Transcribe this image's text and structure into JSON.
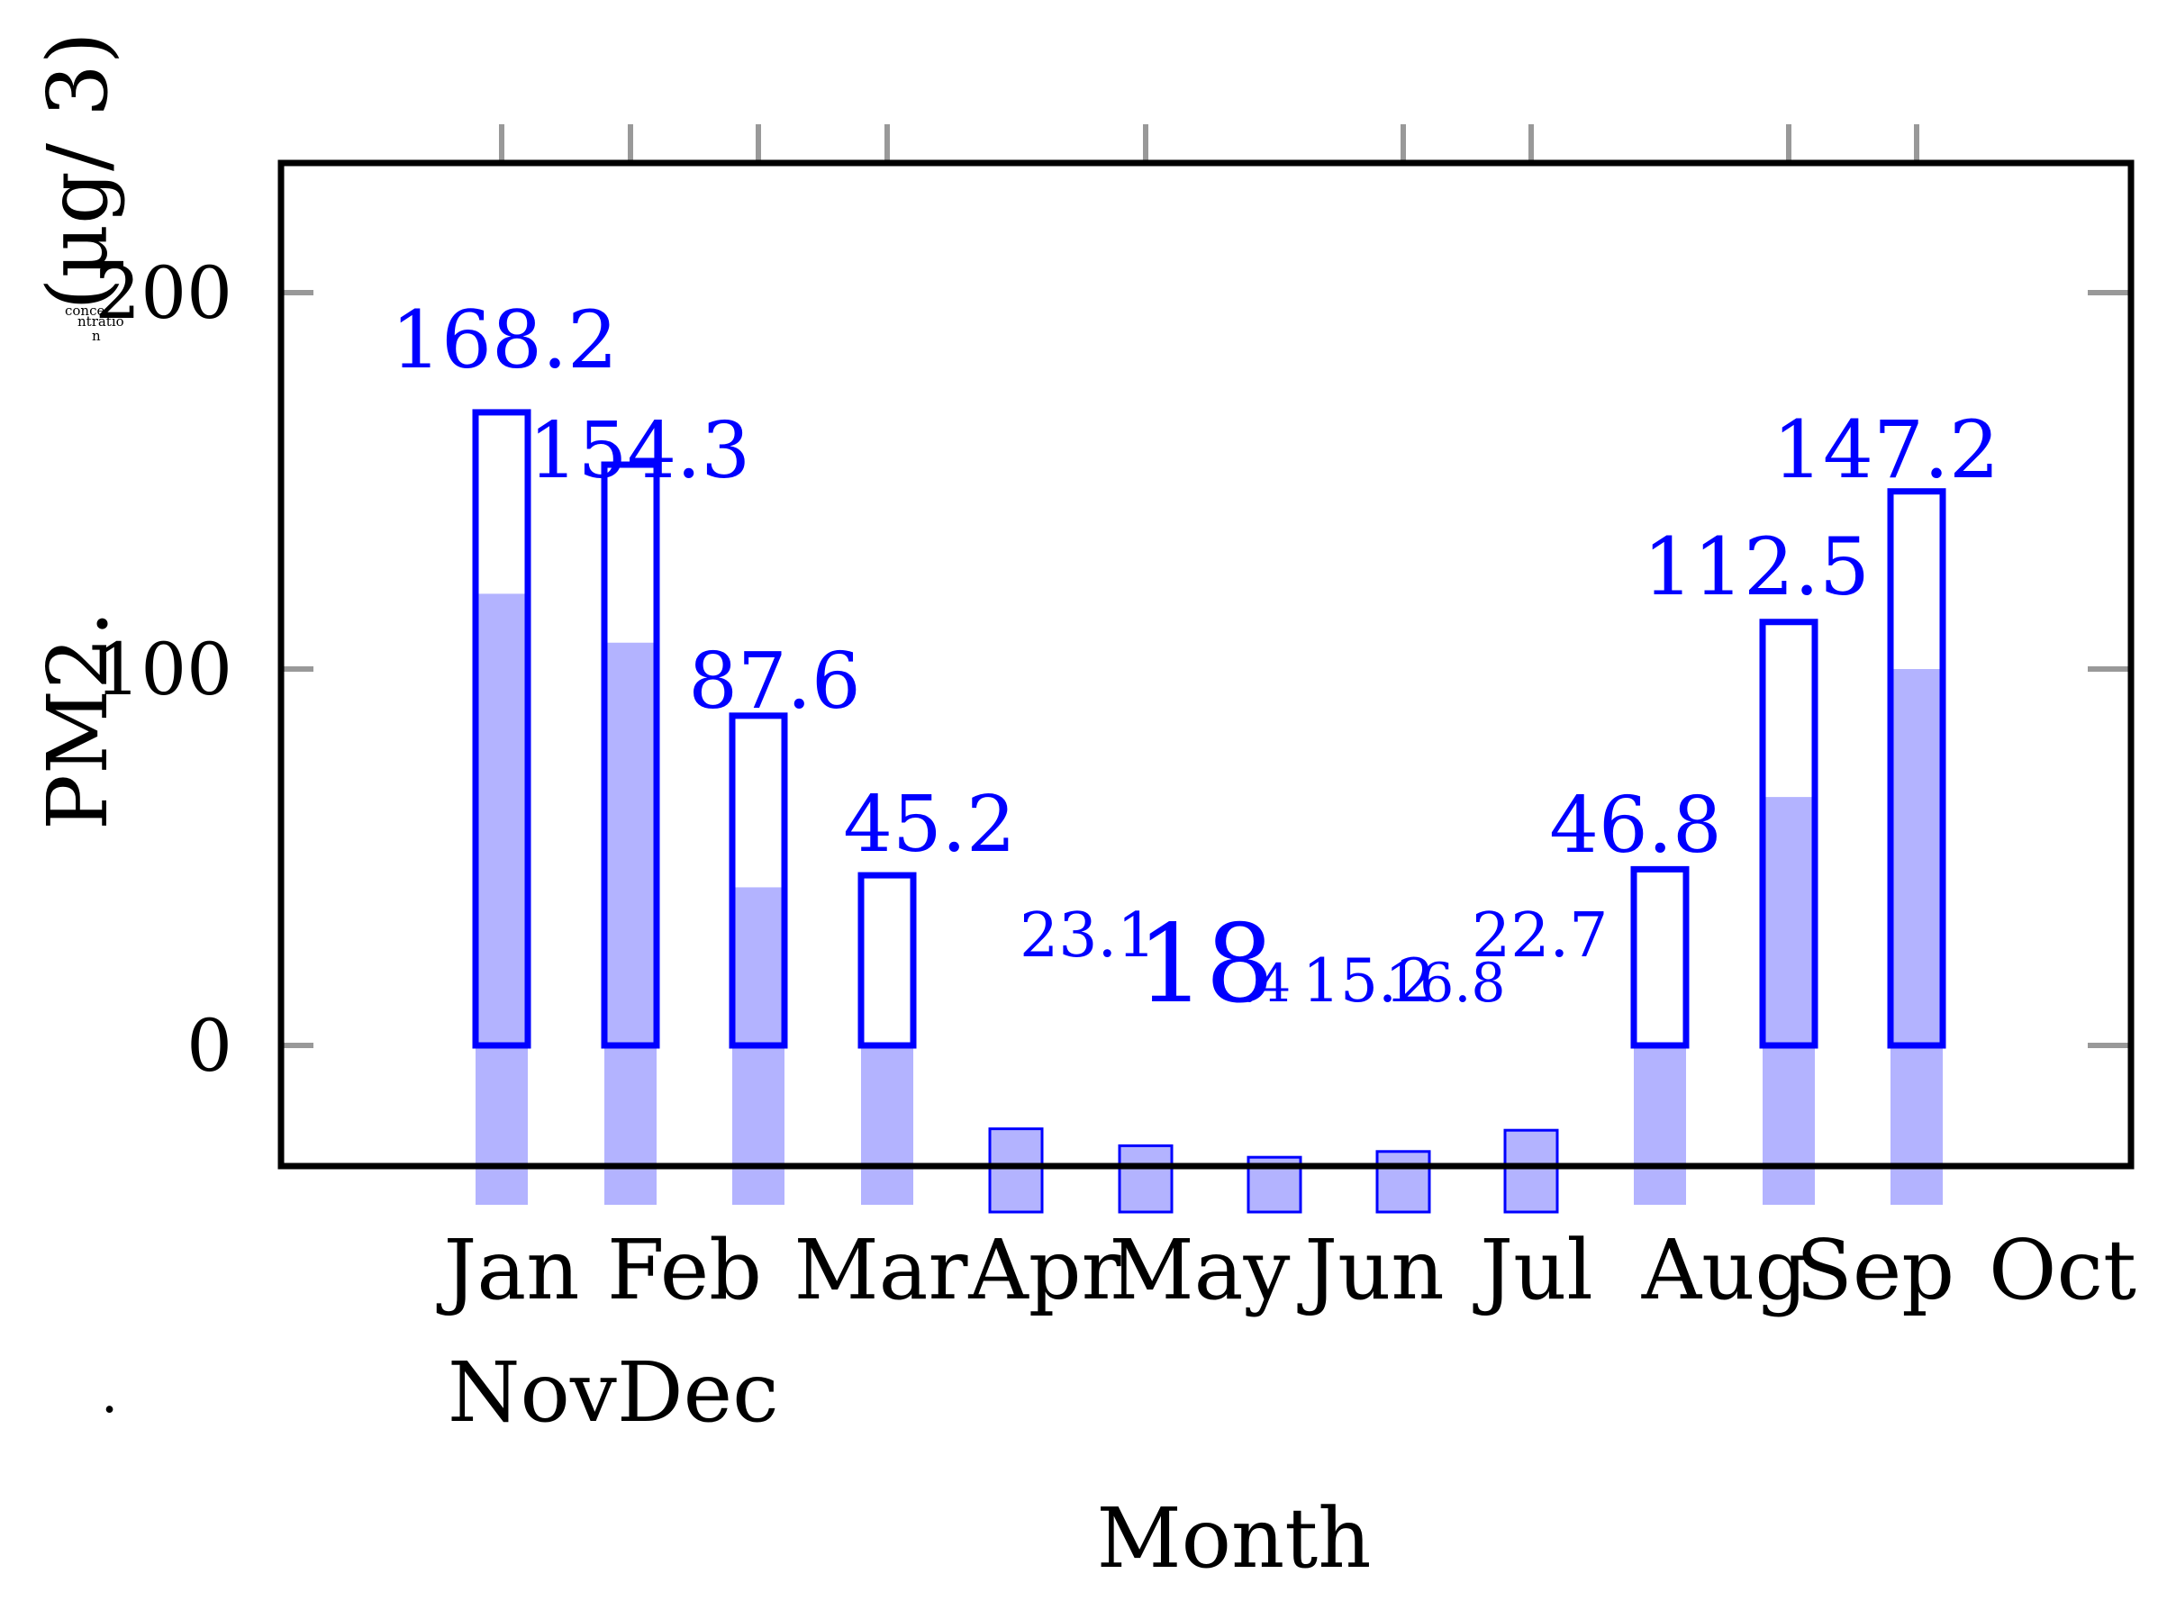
{
  "chart_data": {
    "type": "bar",
    "categories": [
      "Jan",
      "Feb",
      "Mar",
      "Apr",
      "May",
      "Jun",
      "Jul",
      "Aug",
      "Sep",
      "Oct",
      "Nov",
      "Dec"
    ],
    "series": [
      {
        "values": [
          168.2,
          154.3,
          87.6,
          45.2,
          23.1,
          18.4,
          15.2,
          16.8,
          22.7,
          46.8,
          112.5,
          147.2
        ]
      },
      {
        "values": [
          120,
          107,
          42,
          0,
          0,
          0,
          0,
          0,
          0,
          0,
          66,
          100
        ]
      }
    ],
    "value_labels": [
      "168.2",
      "154.3",
      "87.6",
      "45.2",
      "23.1",
      "18",
      ".4",
      "15.2",
      "16.8",
      "22.7",
      "46.8",
      "112.5",
      "147.2"
    ],
    "xlabel": "Month",
    "ylabel_main": "PM2.",
    "ylabel_dot": ".",
    "ylabel_small_lines": [
      "conce",
      "ntratio",
      "n"
    ],
    "ylabel_unit": "(μg/ 3)",
    "y_ticks": [
      "0",
      "100",
      "200"
    ],
    "ylim": [
      -32,
      230
    ],
    "month_row1": [
      "Jan",
      "Feb",
      "Mar",
      "Apr",
      "May",
      "Jun",
      "Jul",
      "Aug",
      "Sep",
      "Oct"
    ],
    "month_row2": "NovDec",
    "colors": {
      "outline": "#0000ff",
      "fill": "#b3b3ff",
      "tick": "#999999",
      "frame": "#000000"
    },
    "grid": false,
    "legend": "none"
  }
}
